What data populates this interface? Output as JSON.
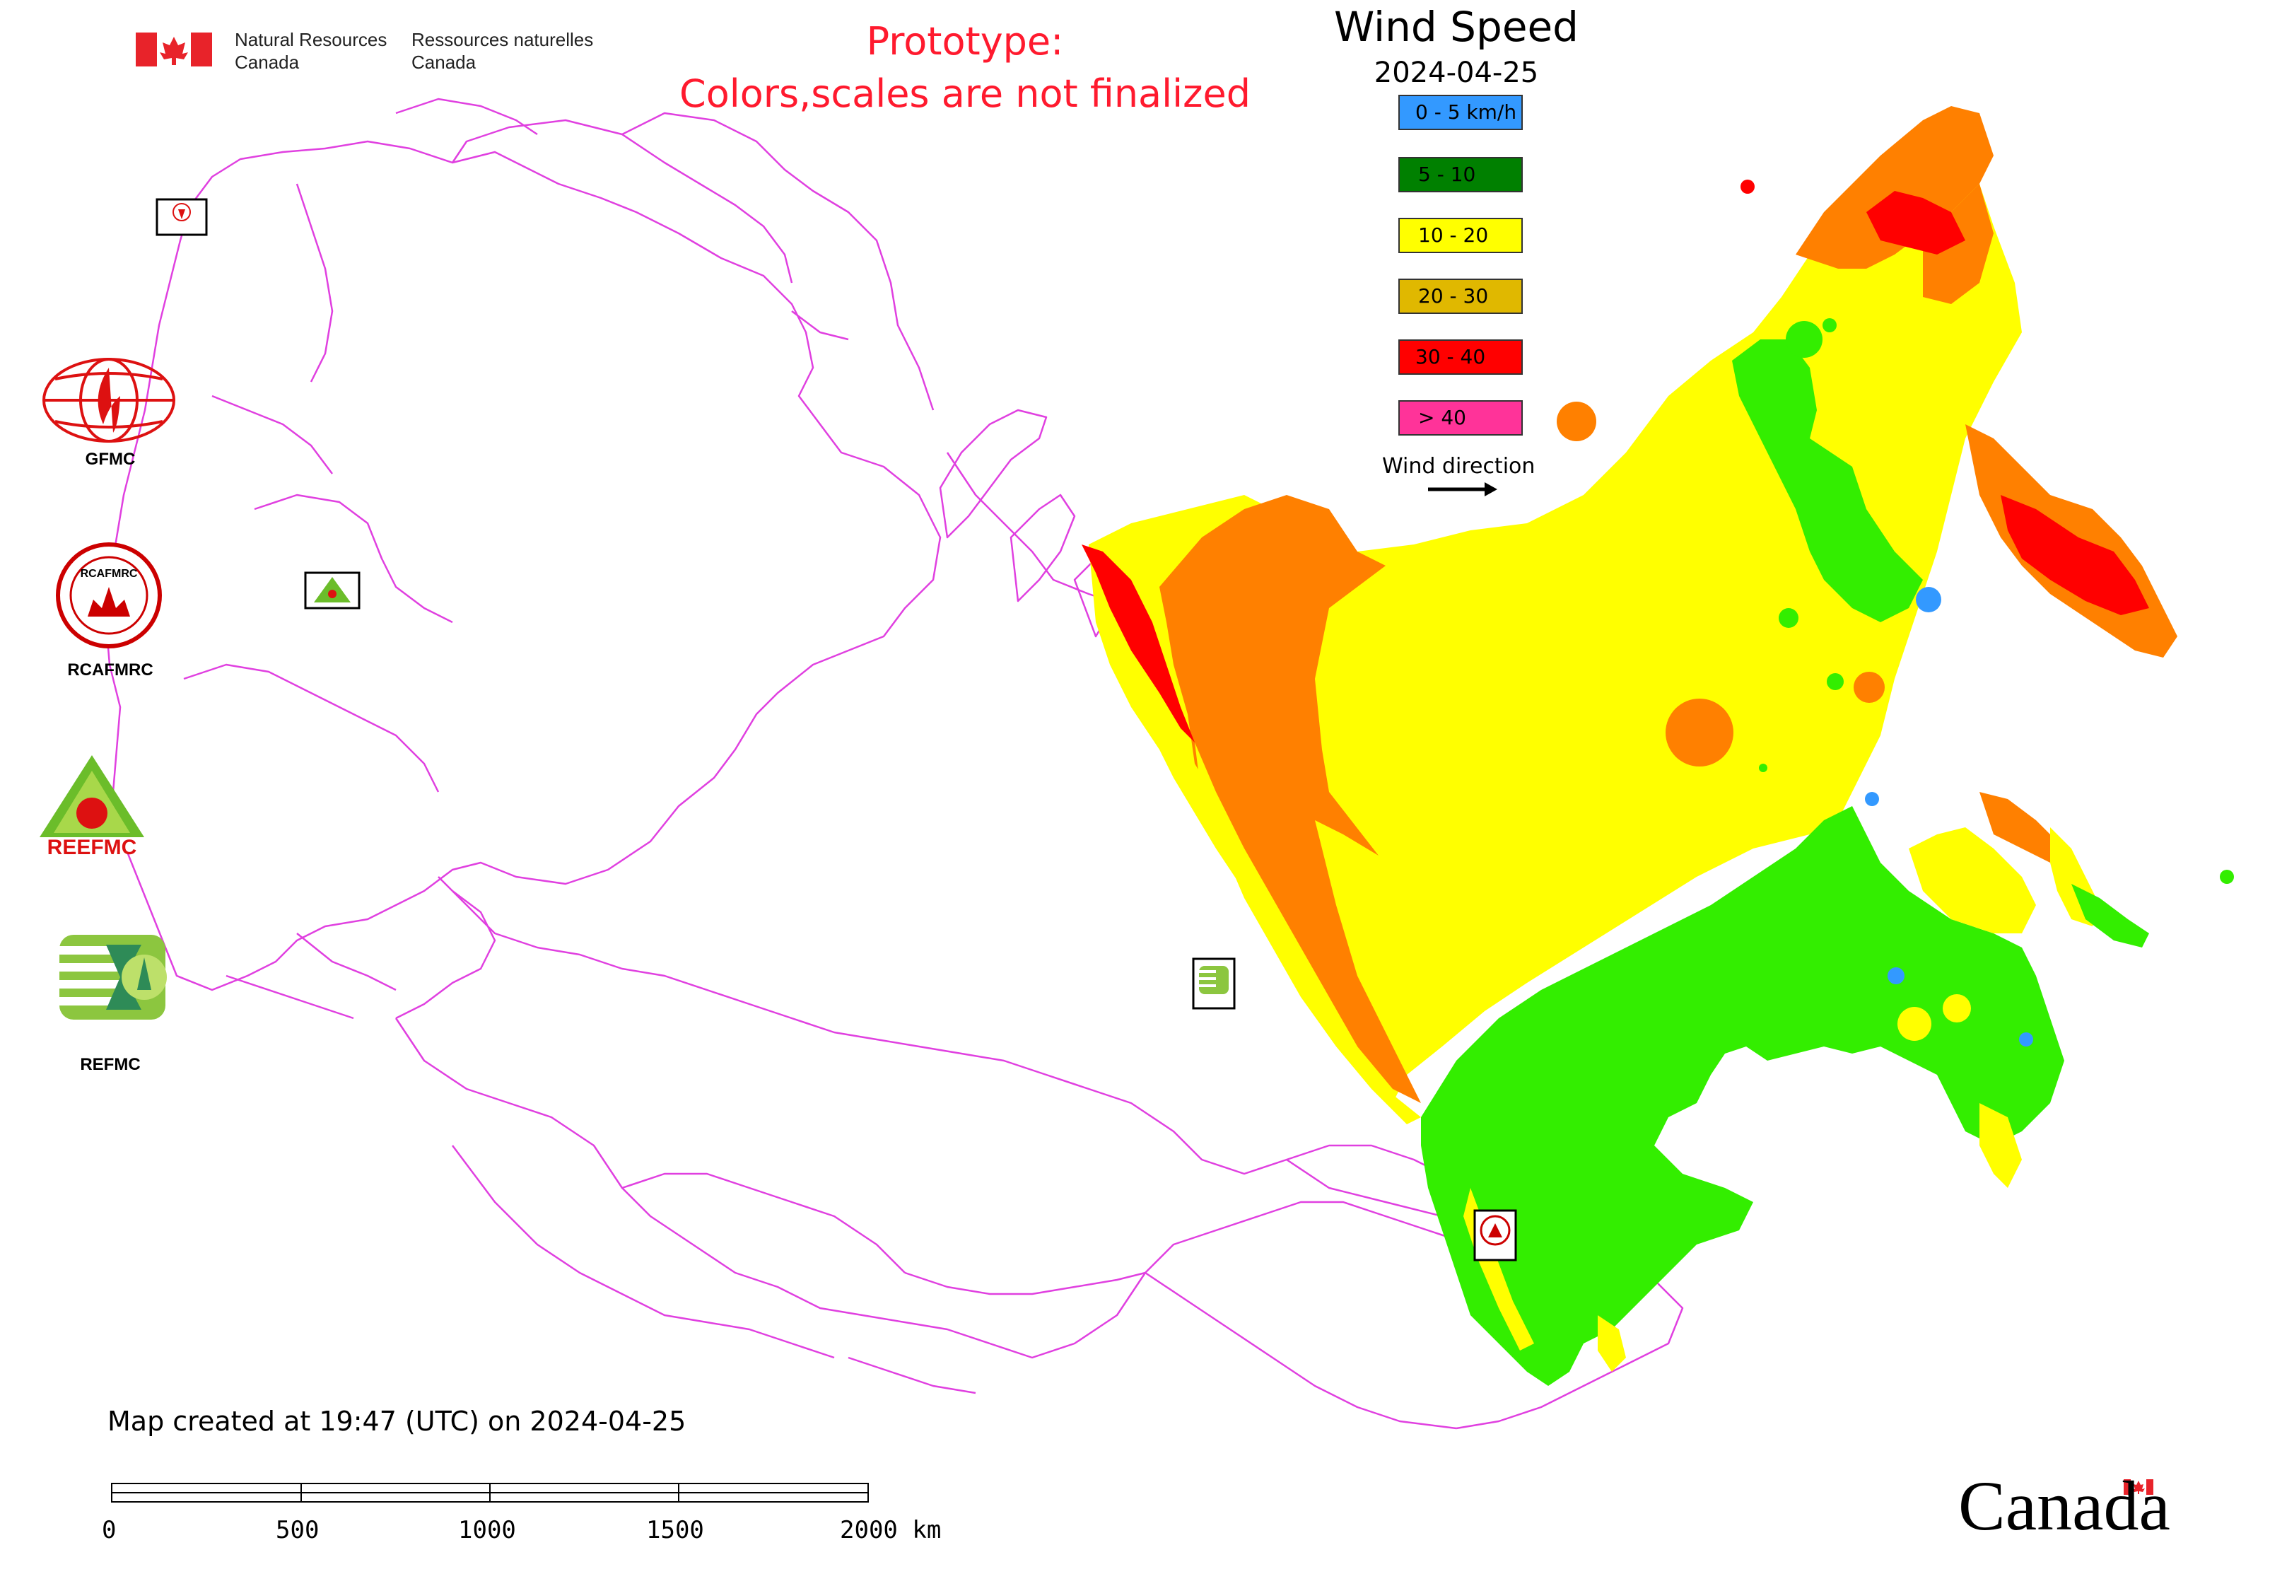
{
  "header": {
    "agency_en": "Natural Resources\nCanada",
    "agency_fr": "Ressources naturelles\nCanada",
    "prototype_line1": "Prototype:",
    "prototype_line2": "Colors,scales are not finalized"
  },
  "legend": {
    "title": "Wind Speed",
    "date": "2024-04-25",
    "items": [
      {
        "label": "0 - 5 km/h",
        "color": "#3399ff"
      },
      {
        "label": "5 - 10",
        "color": "#008000"
      },
      {
        "label": "10 - 20",
        "color": "#ffff00"
      },
      {
        "label": "20 - 30",
        "color": "#e0b800"
      },
      {
        "label": "30 - 40",
        "color": "#ff0000"
      },
      {
        "label": "> 40",
        "color": "#ff3399"
      }
    ],
    "wind_direction_label": "Wind direction"
  },
  "logos": {
    "gfmc": "GFMC",
    "rcafmrc": "RCAFMRC",
    "rcafmrc_emblem_text": "RCAFMRC",
    "reefmc": "REEFMC",
    "refmc": "REFMC"
  },
  "footer": {
    "created": "Map created at 19:47 (UTC) on 2024-04-25",
    "scale_ticks": [
      "0",
      "500",
      "1000",
      "1500",
      "2000 km"
    ],
    "wordmark": "Canada"
  },
  "colors": {
    "border": "#e040e0",
    "orange": "#ff8000",
    "yellow": "#ffff00",
    "green": "#33ee00",
    "red": "#ff0000",
    "blue": "#3399ff",
    "prototype": "#ff1a2e"
  }
}
